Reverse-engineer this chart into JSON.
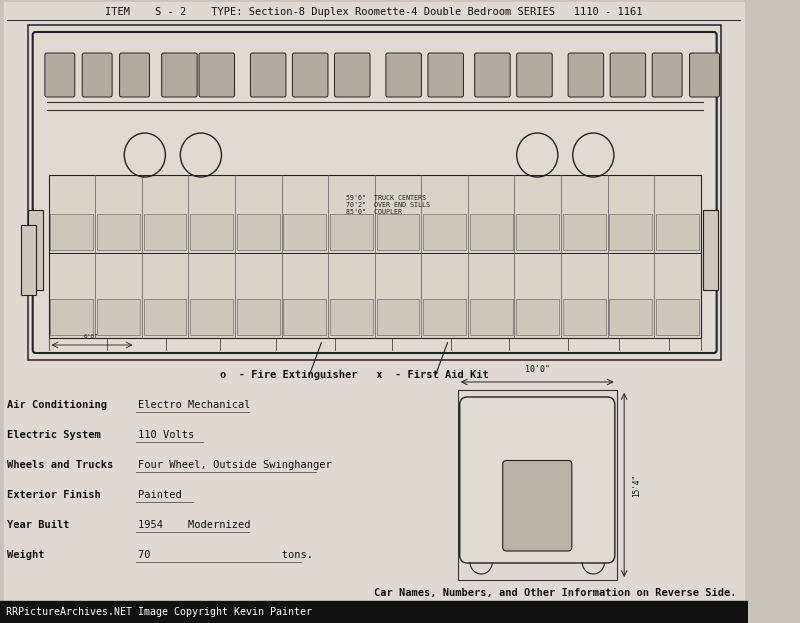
{
  "bg_color": "#c8c4bc",
  "paper_color": "#dedad2",
  "fig_w": 8.0,
  "fig_h": 6.23,
  "dpi": 100,
  "title_text": "ITEM    S - 2    TYPE: Section-8 Duplex Roomette-4 Double Bedroom SERIES   1110 - 1161",
  "footer_text": "RRPictureArchives.NET Image Copyright Kevin Painter",
  "footer_bg": "#111111",
  "footer_color": "#ffffff",
  "legend_text": "o  - Fire Extinguisher   x  - First Aid Kit",
  "specs": [
    [
      "Air Conditioning",
      "Electro Mechanical"
    ],
    [
      "Electric System",
      "110 Volts"
    ],
    [
      "Wheels and Trucks",
      "Four Wheel, Outside Swinghanger"
    ],
    [
      "Exterior Finish",
      "Painted"
    ],
    [
      "Year Built",
      "1954    Modernized"
    ],
    [
      "Weight",
      "70                     tons."
    ]
  ],
  "bottom_note": "Car Names, Numbers, and Other Information on Reverse Side.",
  "line_color": "#333333",
  "dark_color": "#222222",
  "mid_color": "#555555",
  "light_fill": "#e0dbd0",
  "medium_fill": "#ccc8bc",
  "window_fill": "#b0aca0"
}
